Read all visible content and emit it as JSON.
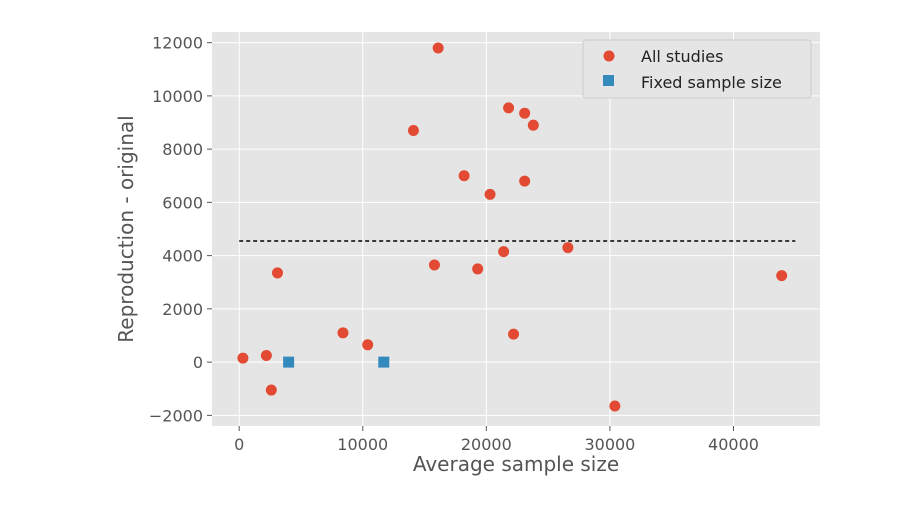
{
  "chart_data": {
    "type": "scatter",
    "xlabel": "Average sample size",
    "ylabel": "Reproduction - original",
    "xlim": [
      -2200,
      47000
    ],
    "ylim": [
      -2400,
      12400
    ],
    "x_ticks": [
      0,
      10000,
      20000,
      30000,
      40000
    ],
    "x_tick_labels": [
      "0",
      "10000",
      "20000",
      "30000",
      "40000"
    ],
    "y_ticks": [
      -2000,
      0,
      2000,
      4000,
      6000,
      8000,
      10000,
      12000
    ],
    "y_tick_labels": [
      "−2000",
      "0",
      "2000",
      "4000",
      "6000",
      "8000",
      "10000",
      "12000"
    ],
    "grid": true,
    "legend_position": "top-right",
    "series": [
      {
        "name": "All studies",
        "color": "#e24a33",
        "marker": "circle",
        "points": [
          {
            "x": 300,
            "y": 150
          },
          {
            "x": 2200,
            "y": 250
          },
          {
            "x": 2600,
            "y": -1050
          },
          {
            "x": 3100,
            "y": 3350
          },
          {
            "x": 8400,
            "y": 1100
          },
          {
            "x": 10400,
            "y": 650
          },
          {
            "x": 14100,
            "y": 8700
          },
          {
            "x": 15800,
            "y": 3650
          },
          {
            "x": 16100,
            "y": 11800
          },
          {
            "x": 18200,
            "y": 7000
          },
          {
            "x": 19300,
            "y": 3500
          },
          {
            "x": 20300,
            "y": 6300
          },
          {
            "x": 21400,
            "y": 4150
          },
          {
            "x": 21800,
            "y": 9550
          },
          {
            "x": 22200,
            "y": 1050
          },
          {
            "x": 23100,
            "y": 9350
          },
          {
            "x": 23100,
            "y": 6800
          },
          {
            "x": 23800,
            "y": 8900
          },
          {
            "x": 26600,
            "y": 4300
          },
          {
            "x": 30400,
            "y": -1650
          },
          {
            "x": 43900,
            "y": 3250
          }
        ]
      },
      {
        "name": "Fixed sample size",
        "color": "#348abd",
        "marker": "square",
        "points": [
          {
            "x": 4000,
            "y": 0
          },
          {
            "x": 11700,
            "y": 0
          }
        ]
      }
    ],
    "reference_line": {
      "y": 4550,
      "x_start": 0,
      "x_end": 45000,
      "style": "dashed",
      "color": "#000000"
    },
    "background_color": "#e5e5e5",
    "grid_color": "#ffffff"
  }
}
